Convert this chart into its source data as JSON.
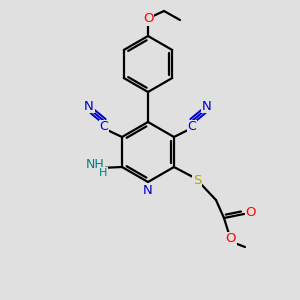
{
  "bg_color": "#e0e0e0",
  "atom_colors": {
    "N": "#0000cc",
    "S": "#aaaa00",
    "O": "#ff0000",
    "NH2": "#008080",
    "C": "#000000"
  },
  "figsize": [
    3.0,
    3.0
  ],
  "dpi": 100
}
